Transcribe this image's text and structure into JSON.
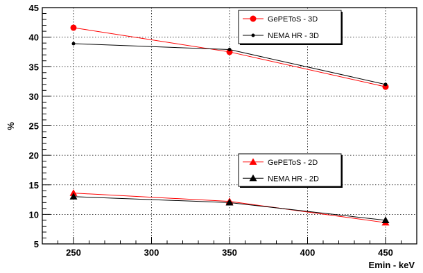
{
  "chart_data": {
    "type": "line",
    "title": "",
    "xlabel": "Emin - keV",
    "ylabel": "%",
    "xlim": [
      230,
      470
    ],
    "ylim": [
      5,
      45
    ],
    "xticks": [
      250,
      300,
      350,
      400,
      450
    ],
    "yticks": [
      5,
      10,
      15,
      20,
      25,
      30,
      35,
      40,
      45
    ],
    "grid": true,
    "series": [
      {
        "name": "GePEToS - 3D",
        "color": "#ff0000",
        "marker": "circle",
        "x": [
          250,
          350,
          450
        ],
        "y": [
          41.6,
          37.5,
          31.6
        ]
      },
      {
        "name": "NEMA HR - 3D",
        "color": "#000000",
        "marker": "dot",
        "x": [
          250,
          350,
          450
        ],
        "y": [
          38.9,
          37.9,
          32.0
        ]
      },
      {
        "name": "GePEToS - 2D",
        "color": "#ff0000",
        "marker": "triangle",
        "x": [
          250,
          350,
          450
        ],
        "y": [
          13.6,
          12.2,
          8.6
        ]
      },
      {
        "name": "NEMA HR - 2D",
        "color": "#000000",
        "marker": "triangle",
        "x": [
          250,
          350,
          450
        ],
        "y": [
          13.0,
          12.0,
          9.0
        ]
      }
    ],
    "legends": [
      {
        "placement": "top-right",
        "entries": [
          0,
          1
        ]
      },
      {
        "placement": "middle-right",
        "entries": [
          2,
          3
        ]
      }
    ]
  }
}
